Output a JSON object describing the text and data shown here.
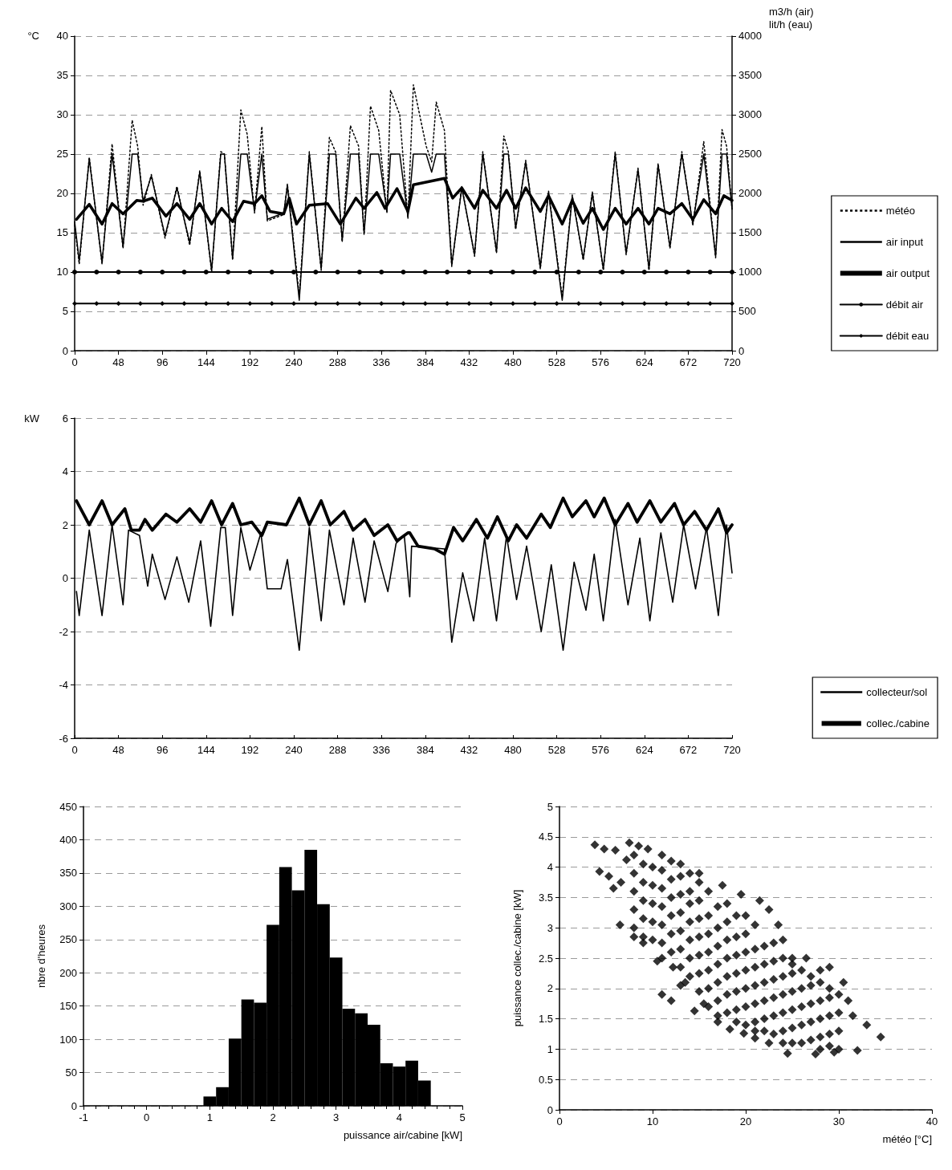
{
  "chart_data": [
    {
      "type": "line",
      "ylabel": "°C",
      "y2label": "m3/h (air)\nlit/h (eau)",
      "xlim": [
        0,
        720
      ],
      "xticks": [
        0,
        48,
        96,
        144,
        192,
        240,
        288,
        336,
        384,
        432,
        480,
        528,
        576,
        624,
        672,
        720
      ],
      "ylim": [
        0,
        40
      ],
      "yticks": [
        0,
        5,
        10,
        15,
        20,
        25,
        30,
        35,
        40
      ],
      "y2lim": [
        0,
        4000
      ],
      "y2ticks": [
        0,
        500,
        1000,
        1500,
        2000,
        2500,
        3000,
        3500,
        4000
      ],
      "grid": "y",
      "legend": "right",
      "series": [
        {
          "name": "météo",
          "color": "#000000",
          "line_style": "dotted",
          "marker": "none",
          "x": [
            0,
            5,
            16,
            30,
            41,
            53,
            63,
            69,
            75,
            84,
            99,
            112,
            126,
            137,
            150,
            160,
            164,
            173,
            182,
            189,
            197,
            205,
            211,
            229,
            233,
            246,
            257,
            270,
            279,
            286,
            293,
            302,
            311,
            317,
            324,
            333,
            342,
            346,
            356,
            365,
            371,
            385,
            391,
            396,
            405,
            413,
            424,
            438,
            447,
            462,
            470,
            475,
            483,
            494,
            510,
            519,
            534,
            545,
            557,
            567,
            579,
            592,
            604,
            617,
            629,
            639,
            652,
            665,
            677,
            689,
            702,
            709,
            714,
            720
          ],
          "values": [
            16,
            11,
            24.6,
            11,
            26.3,
            13,
            29.3,
            26,
            18.5,
            22.4,
            14.3,
            20.9,
            13.4,
            22.9,
            10,
            25.3,
            25,
            11.5,
            30.6,
            27.5,
            17.5,
            28.5,
            16.5,
            17.3,
            21.2,
            7,
            25.3,
            10.2,
            27.1,
            25.2,
            13.8,
            28.6,
            26,
            14.7,
            31.1,
            28,
            17.5,
            33.1,
            30,
            16.8,
            33.8,
            26,
            24,
            31.6,
            28,
            10.7,
            20.9,
            12,
            25.3,
            12.4,
            27.3,
            25.3,
            15.4,
            24.2,
            10.4,
            20.3,
            6.8,
            19.8,
            11.5,
            20.2,
            10.2,
            25.3,
            12.2,
            23.2,
            10.2,
            23.8,
            13,
            25.3,
            15.9,
            26.6,
            11.8,
            28.1,
            26,
            18
          ]
        },
        {
          "name": "air input",
          "color": "#000000",
          "line_style": "solid",
          "marker": "none",
          "x": [
            0,
            5,
            16,
            30,
            41,
            53,
            63,
            69,
            75,
            84,
            99,
            112,
            126,
            137,
            150,
            160,
            164,
            173,
            182,
            189,
            197,
            205,
            211,
            229,
            233,
            246,
            257,
            270,
            279,
            286,
            293,
            302,
            311,
            317,
            324,
            333,
            342,
            346,
            356,
            365,
            371,
            385,
            391,
            396,
            405,
            413,
            424,
            438,
            447,
            462,
            470,
            475,
            483,
            494,
            510,
            519,
            534,
            545,
            557,
            567,
            579,
            592,
            604,
            617,
            629,
            639,
            652,
            665,
            677,
            689,
            702,
            709,
            714,
            720
          ],
          "values": [
            16.4,
            11.4,
            24.4,
            11.2,
            25,
            13.2,
            25,
            25,
            19,
            22.2,
            14.6,
            20.7,
            13.7,
            22.7,
            10.2,
            25,
            25,
            11.7,
            25,
            25,
            17.7,
            25,
            16.7,
            17.5,
            21,
            6.4,
            25,
            10.4,
            25,
            25,
            14,
            25,
            25,
            14.9,
            25,
            25,
            17.7,
            25,
            25,
            17,
            25,
            25,
            22.7,
            25,
            25,
            10.9,
            20.7,
            12.2,
            25,
            12.6,
            25,
            25,
            15.6,
            24,
            10.6,
            20.1,
            6.4,
            19.6,
            11.7,
            20,
            10.4,
            25,
            12.4,
            23,
            10.4,
            23.6,
            13.2,
            25,
            16.1,
            25,
            12,
            25,
            25,
            18
          ]
        },
        {
          "name": "air output",
          "color": "#000000",
          "line_style": "solid",
          "marker": "none",
          "x": [
            2,
            16,
            30,
            41,
            53,
            68,
            75,
            85,
            100,
            112,
            126,
            137,
            150,
            161,
            173,
            185,
            197,
            205,
            214,
            229,
            235,
            243,
            257,
            277,
            291,
            308,
            317,
            331,
            340,
            353,
            365,
            371,
            405,
            414,
            424,
            438,
            447,
            462,
            473,
            483,
            494,
            510,
            519,
            534,
            545,
            557,
            567,
            579,
            592,
            604,
            617,
            629,
            639,
            652,
            665,
            677,
            689,
            702,
            711,
            720
          ],
          "values": [
            16.7,
            18.6,
            16.1,
            18.7,
            17.4,
            19.1,
            19,
            19.4,
            17.1,
            18.7,
            16.7,
            18.7,
            16.1,
            18.1,
            16.4,
            19,
            18.7,
            19.7,
            17.7,
            17.4,
            19.4,
            16.1,
            18.5,
            18.7,
            16.1,
            19.4,
            18.1,
            20.1,
            18.1,
            20.6,
            17.7,
            21.1,
            21.9,
            19.4,
            20.7,
            18.1,
            20.4,
            18.1,
            20.4,
            18.1,
            20.7,
            17.7,
            19.7,
            16.1,
            19.1,
            16.2,
            18.1,
            15.4,
            18.1,
            16.1,
            18.1,
            16.1,
            18.1,
            17.4,
            18.7,
            16.7,
            19.2,
            17.4,
            19.7,
            19.1
          ]
        },
        {
          "name": "débit air",
          "color": "#000000",
          "axis": "y2",
          "line_style": "solid",
          "marker": "circle",
          "x": [
            0,
            24,
            48,
            72,
            96,
            120,
            144,
            168,
            192,
            216,
            240,
            264,
            288,
            312,
            336,
            360,
            384,
            408,
            432,
            456,
            480,
            504,
            528,
            552,
            576,
            600,
            624,
            648,
            672,
            696,
            720
          ],
          "values": [
            1000,
            1000,
            1000,
            1000,
            1000,
            1000,
            1000,
            1000,
            1000,
            1000,
            1000,
            1000,
            1000,
            1000,
            1000,
            1000,
            1000,
            1000,
            1000,
            1000,
            1000,
            1000,
            1000,
            1000,
            1000,
            1000,
            1000,
            1000,
            1000,
            1000,
            1000
          ]
        },
        {
          "name": "débit eau",
          "color": "#000000",
          "axis": "y2",
          "line_style": "solid",
          "marker": "diamond",
          "x": [
            0,
            24,
            48,
            72,
            96,
            120,
            144,
            168,
            192,
            216,
            240,
            264,
            288,
            312,
            336,
            360,
            384,
            408,
            432,
            456,
            480,
            504,
            528,
            552,
            576,
            600,
            624,
            648,
            672,
            696,
            720
          ],
          "values": [
            600,
            600,
            600,
            600,
            600,
            600,
            600,
            600,
            600,
            600,
            600,
            600,
            600,
            600,
            600,
            600,
            600,
            600,
            600,
            600,
            600,
            600,
            600,
            600,
            600,
            600,
            600,
            600,
            600,
            600,
            600
          ]
        }
      ]
    },
    {
      "type": "line",
      "ylabel": "kW",
      "xlim": [
        0,
        720
      ],
      "xticks": [
        0,
        48,
        96,
        144,
        192,
        240,
        288,
        336,
        384,
        432,
        480,
        528,
        576,
        624,
        672,
        720
      ],
      "ylim": [
        -6,
        6
      ],
      "yticks": [
        -6,
        -4,
        -2,
        0,
        2,
        4,
        6
      ],
      "grid": "y",
      "legend": "right",
      "series": [
        {
          "name": "collecteur/sol",
          "color": "#000000",
          "line_style": "solid",
          "marker": "none",
          "x": [
            2,
            5,
            16,
            30,
            41,
            53,
            59,
            71,
            80,
            85,
            99,
            112,
            125,
            138,
            149,
            160,
            165,
            173,
            182,
            192,
            204,
            211,
            226,
            233,
            246,
            257,
            270,
            279,
            295,
            305,
            318,
            328,
            343,
            352,
            361,
            367,
            369,
            405,
            413,
            425,
            437,
            449,
            462,
            473,
            484,
            495,
            511,
            522,
            535,
            547,
            560,
            569,
            579,
            592,
            606,
            619,
            630,
            642,
            655,
            667,
            680,
            692,
            705,
            714,
            720
          ],
          "values": [
            -0.5,
            -1.4,
            1.8,
            -1.4,
            2.0,
            -1.0,
            1.8,
            1.6,
            -0.3,
            0.9,
            -0.8,
            0.8,
            -0.9,
            1.4,
            -1.8,
            1.9,
            1.9,
            -1.4,
            1.9,
            0.3,
            1.7,
            -0.4,
            -0.4,
            0.7,
            -2.7,
            1.9,
            -1.6,
            1.8,
            -1.0,
            1.5,
            -0.9,
            1.4,
            -0.5,
            1.3,
            1.6,
            -0.7,
            1.2,
            1.1,
            -2.4,
            0.2,
            -1.6,
            1.5,
            -1.6,
            1.6,
            -0.8,
            1.2,
            -2.0,
            0.5,
            -2.7,
            0.6,
            -1.2,
            0.9,
            -1.6,
            2.2,
            -1.0,
            1.5,
            -1.6,
            1.7,
            -0.9,
            2.0,
            -0.4,
            1.9,
            -1.4,
            2.0,
            0.2
          ]
        },
        {
          "name": "collec./cabine",
          "color": "#000000",
          "line_style": "solid",
          "marker": "none",
          "x": [
            2,
            16,
            30,
            41,
            55,
            62,
            71,
            77,
            85,
            100,
            112,
            126,
            138,
            150,
            161,
            173,
            182,
            194,
            205,
            211,
            232,
            246,
            257,
            270,
            280,
            295,
            305,
            318,
            328,
            343,
            353,
            365,
            367,
            376,
            394,
            405,
            415,
            425,
            440,
            452,
            463,
            475,
            484,
            495,
            511,
            521,
            535,
            545,
            560,
            569,
            580,
            592,
            606,
            616,
            630,
            642,
            657,
            667,
            679,
            692,
            705,
            714,
            720
          ],
          "values": [
            2.9,
            2.0,
            2.9,
            2.0,
            2.6,
            1.8,
            1.8,
            2.2,
            1.8,
            2.4,
            2.1,
            2.6,
            2.1,
            2.9,
            2.0,
            2.8,
            2.0,
            2.1,
            1.6,
            2.1,
            2.0,
            3.0,
            2.0,
            2.9,
            2.0,
            2.5,
            1.8,
            2.2,
            1.6,
            2.0,
            1.4,
            1.7,
            1.7,
            1.2,
            1.1,
            0.9,
            1.9,
            1.4,
            2.2,
            1.5,
            2.3,
            1.4,
            2.0,
            1.5,
            2.4,
            1.9,
            3.0,
            2.3,
            2.9,
            2.3,
            3.0,
            2.0,
            2.8,
            2.1,
            2.9,
            2.1,
            2.8,
            2.0,
            2.5,
            1.8,
            2.6,
            1.7,
            2.0
          ]
        }
      ]
    },
    {
      "type": "histogram",
      "xlabel": "puissance air/cabine [kW]",
      "ylabel": "nbre d'heures",
      "color": "#000000",
      "xlim": [
        -1,
        5
      ],
      "xticks": [
        -1,
        0,
        1,
        2,
        3,
        4,
        5
      ],
      "ylim": [
        0,
        450
      ],
      "yticks": [
        0,
        50,
        100,
        150,
        200,
        250,
        300,
        350,
        400,
        450
      ],
      "grid": "y",
      "bins": [
        0.9,
        1.1,
        1.3,
        1.5,
        1.7,
        1.9,
        2.1,
        2.3,
        2.5,
        2.7,
        2.9,
        3.1,
        3.3,
        3.5,
        3.7,
        3.9,
        4.1,
        4.3,
        4.5
      ],
      "values": [
        14,
        28,
        101,
        160,
        155,
        272,
        359,
        324,
        385,
        303,
        223,
        146,
        139,
        122,
        64,
        59,
        68,
        38
      ]
    },
    {
      "type": "scatter",
      "xlabel": "météo [°C]",
      "ylabel": "puissance collec./cabine [kW]",
      "color": "#000000",
      "marker": "diamond",
      "xlim": [
        0,
        40
      ],
      "xticks": [
        0,
        10,
        20,
        30,
        40
      ],
      "ylim": [
        0,
        5
      ],
      "yticks": [
        0,
        0.5,
        1,
        1.5,
        2,
        2.5,
        3,
        3.5,
        4,
        4.5,
        5
      ],
      "grid": "y",
      "x": [
        3.8,
        4.3,
        4.8,
        5.3,
        5.8,
        6,
        6.5,
        6.6,
        7.5,
        7.2,
        8,
        8.5,
        9,
        9.5,
        10.5,
        11,
        11,
        12,
        12.2,
        13,
        13.5,
        14.5,
        15,
        15.5,
        17,
        17.5,
        18.3,
        19.5,
        19.8,
        21,
        21.5,
        22.5,
        22.5,
        23.5,
        24,
        24.5,
        25,
        26.5,
        27.5,
        28,
        29,
        29.5,
        30.5,
        31,
        31.5,
        32,
        33,
        34.5,
        8,
        8,
        8,
        8,
        8,
        10,
        10,
        10,
        10,
        10,
        12,
        12,
        12,
        12,
        12,
        12,
        14,
        14,
        14,
        14,
        14,
        14,
        14,
        16,
        16,
        16,
        16,
        16,
        16,
        16,
        18,
        18,
        18,
        18,
        18,
        18,
        18,
        20,
        20,
        20,
        20,
        20,
        20,
        20,
        22,
        22,
        22,
        22,
        22,
        22,
        24,
        24,
        24,
        24,
        24,
        24,
        26,
        26,
        26,
        26,
        26,
        28,
        28,
        28,
        28,
        28,
        30,
        30,
        30,
        30,
        9,
        9,
        9,
        9,
        9,
        11,
        11,
        11,
        11,
        11,
        11,
        13,
        13,
        13,
        13,
        13,
        13,
        13,
        15,
        15,
        15,
        15,
        15,
        15,
        15,
        17,
        17,
        17,
        17,
        17,
        17,
        17,
        19,
        19,
        19,
        19,
        19,
        19,
        19,
        21,
        21,
        21,
        21,
        21,
        21,
        21,
        23,
        23,
        23,
        23,
        23,
        23,
        25,
        25,
        25,
        25,
        25,
        25,
        27,
        27,
        27,
        27,
        27,
        29,
        29,
        29,
        29,
        29
      ],
      "values": [
        4.37,
        3.93,
        4.3,
        3.85,
        3.65,
        4.28,
        3.05,
        3.75,
        4.4,
        4.12,
        2.85,
        4.35,
        2.75,
        4.3,
        2.45,
        4.2,
        1.9,
        1.8,
        2.35,
        4.05,
        2.1,
        1.63,
        3.9,
        1.75,
        1.45,
        3.7,
        1.33,
        3.55,
        1.26,
        1.18,
        3.45,
        1.1,
        3.3,
        3.05,
        2.8,
        0.93,
        2.5,
        2.5,
        0.92,
        1,
        2.35,
        0.95,
        2.1,
        1.8,
        1.55,
        0.98,
        1.4,
        1.2,
        3.6,
        3.3,
        3.0,
        3.9,
        4.2,
        3.7,
        3.4,
        3.1,
        2.8,
        4.0,
        3.5,
        3.2,
        2.9,
        2.6,
        4.1,
        3.8,
        3.4,
        3.1,
        2.8,
        2.5,
        2.2,
        3.9,
        3.6,
        3.2,
        2.9,
        2.6,
        2.3,
        2.0,
        1.7,
        3.6,
        3.1,
        2.8,
        2.5,
        2.2,
        1.9,
        1.6,
        3.4,
        2.9,
        2.6,
        2.3,
        2.0,
        1.7,
        1.4,
        3.2,
        2.7,
        2.4,
        2.1,
        1.8,
        1.5,
        1.3,
        2.5,
        2.2,
        1.9,
        1.6,
        1.3,
        1.1,
        2.3,
        2.0,
        1.7,
        1.4,
        1.1,
        2.1,
        1.8,
        1.5,
        1.2,
        2.3,
        1.9,
        1.6,
        1.3,
        1.0,
        3.45,
        3.15,
        2.85,
        3.75,
        4.05,
        3.35,
        3.05,
        2.75,
        2.5,
        3.65,
        3.95,
        3.25,
        2.95,
        2.65,
        2.35,
        2.05,
        3.55,
        3.85,
        3.15,
        2.85,
        2.55,
        2.25,
        1.95,
        3.45,
        3.75,
        3.0,
        2.7,
        2.4,
        2.1,
        1.8,
        1.55,
        3.35,
        2.85,
        2.55,
        2.25,
        1.95,
        1.65,
        1.45,
        3.2,
        2.65,
        2.35,
        2.05,
        1.75,
        1.45,
        1.3,
        3.05,
        2.45,
        2.15,
        1.85,
        1.55,
        1.25,
        2.75,
        2.25,
        1.95,
        1.65,
        1.35,
        1.1,
        2.4,
        2.05,
        1.75,
        1.45,
        1.15,
        2.2,
        1.85,
        1.55,
        1.25,
        1.05,
        2.0
      ]
    }
  ]
}
